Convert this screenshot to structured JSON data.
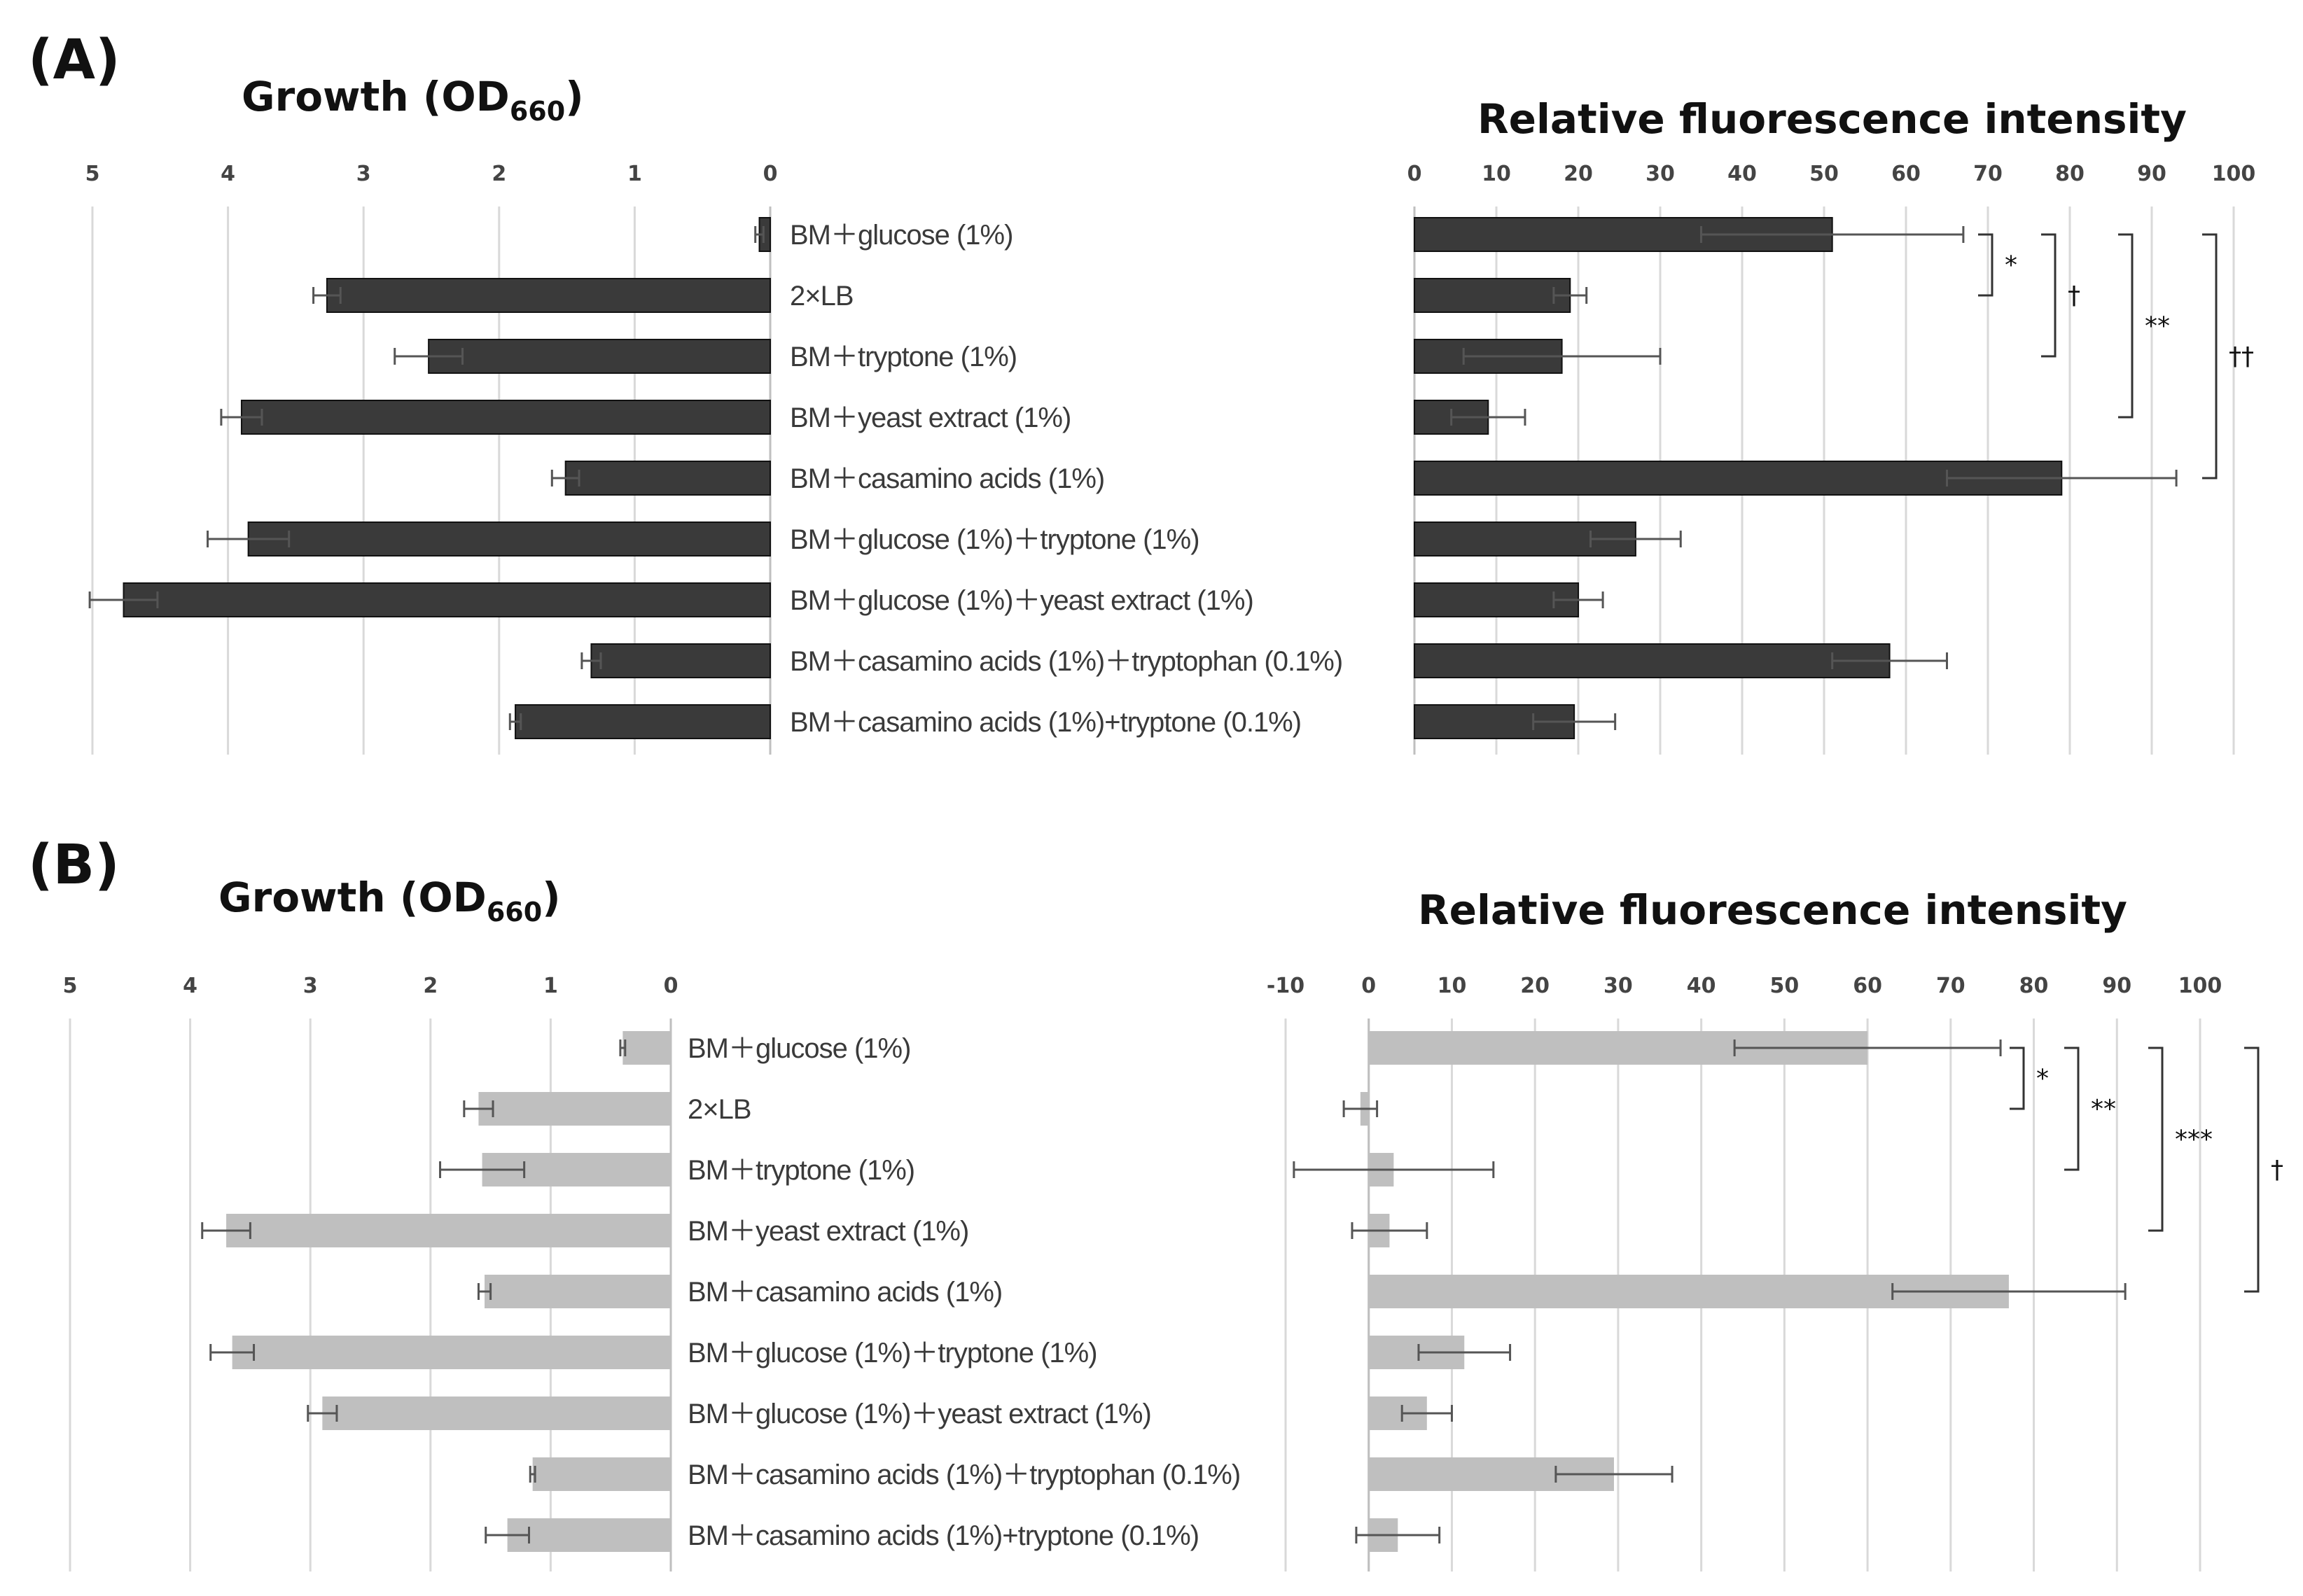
{
  "chart_data": [
    {
      "panel": "A",
      "side": "growth",
      "type": "bar",
      "orientation": "horizontal-reversed",
      "title_main": "Growth (OD",
      "title_sub": "660",
      "title_close": ")",
      "xlim": [
        0,
        5
      ],
      "ticks": [
        "5",
        "4",
        "3",
        "2",
        "1",
        "0"
      ],
      "color": "#3a3a3a",
      "categories": [
        "BM＋glucose (1%)",
        "2×LB",
        "BM＋tryptone (1%)",
        "BM＋yeast extract (1%)",
        "BM＋casamino acids (1%)",
        "BM＋glucose (1%)＋tryptone (1%)",
        "BM＋glucose (1%)＋yeast extract (1%)",
        "BM＋casamino acids (1%)＋tryptophan (0.1%)",
        "BM＋casamino acids (1%)+tryptone (0.1%)"
      ],
      "values": [
        0.08,
        3.27,
        2.52,
        3.9,
        1.51,
        3.85,
        4.77,
        1.32,
        1.88
      ],
      "errors": [
        0.03,
        0.1,
        0.25,
        0.15,
        0.1,
        0.3,
        0.25,
        0.07,
        0.04
      ]
    },
    {
      "panel": "A",
      "side": "fluorescence",
      "type": "bar",
      "orientation": "horizontal",
      "title": "Relative fluorescence intensity",
      "xlim": [
        0,
        100
      ],
      "ticks": [
        "0",
        "10",
        "20",
        "30",
        "40",
        "50",
        "60",
        "70",
        "80",
        "90",
        "100"
      ],
      "color": "#3a3a3a",
      "values": [
        51,
        19,
        18,
        9,
        79,
        27,
        20,
        58,
        19.5
      ],
      "errors": [
        16,
        2,
        12,
        4.5,
        14,
        5.5,
        3,
        7,
        5
      ],
      "significance": [
        {
          "label": "*",
          "from": 0,
          "to": 1
        },
        {
          "label": "†",
          "from": 0,
          "to": 2
        },
        {
          "label": "**",
          "from": 0,
          "to": 3
        },
        {
          "label": "††",
          "from": 0,
          "to": 4
        }
      ]
    },
    {
      "panel": "B",
      "side": "growth",
      "type": "bar",
      "orientation": "horizontal-reversed",
      "title_main": "Growth (OD",
      "title_sub": "660",
      "title_close": ")",
      "xlim": [
        0,
        5
      ],
      "ticks": [
        "5",
        "4",
        "3",
        "2",
        "1",
        "0"
      ],
      "color": "#bfbfbf",
      "categories": [
        "BM＋glucose (1%)",
        "2×LB",
        "BM＋tryptone (1%)",
        "BM＋yeast extract (1%)",
        "BM＋casamino acids (1%)",
        "BM＋glucose (1%)＋tryptone (1%)",
        "BM＋glucose (1%)＋yeast extract (1%)",
        "BM＋casamino acids (1%)＋tryptophan (0.1%)",
        "BM＋casamino acids (1%)+tryptone (0.1%)"
      ],
      "values": [
        0.4,
        1.6,
        1.57,
        3.7,
        1.55,
        3.65,
        2.9,
        1.15,
        1.36
      ],
      "errors": [
        0.02,
        0.12,
        0.35,
        0.2,
        0.05,
        0.18,
        0.12,
        0.02,
        0.18
      ]
    },
    {
      "panel": "B",
      "side": "fluorescence",
      "type": "bar",
      "orientation": "horizontal",
      "title": "Relative fluorescence intensity",
      "xlim": [
        -10,
        100
      ],
      "ticks": [
        "-10",
        "0",
        "10",
        "20",
        "30",
        "40",
        "50",
        "60",
        "70",
        "80",
        "90",
        "100"
      ],
      "color": "#bfbfbf",
      "values": [
        60,
        -1,
        3,
        2.5,
        77,
        11.5,
        7,
        29.5,
        3.5
      ],
      "errors": [
        16,
        2,
        12,
        4.5,
        14,
        5.5,
        3,
        7,
        5
      ],
      "significance": [
        {
          "label": "*",
          "from": 0,
          "to": 1
        },
        {
          "label": "**",
          "from": 0,
          "to": 2
        },
        {
          "label": "***",
          "from": 0,
          "to": 3
        },
        {
          "label": "†",
          "from": 0,
          "to": 4
        }
      ]
    }
  ],
  "panel_labels": [
    "(A)",
    "(B)"
  ]
}
